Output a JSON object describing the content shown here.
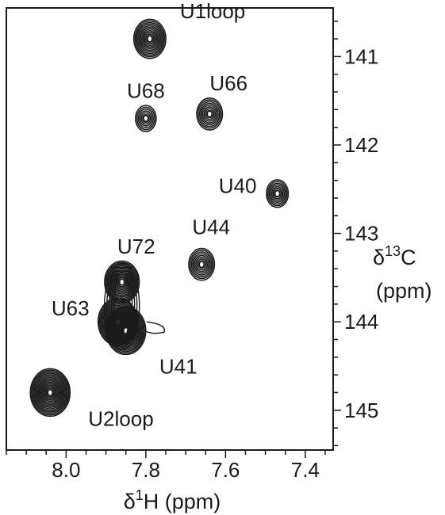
{
  "chart_data": {
    "type": "scatter",
    "subtype": "2D NMR contour spectrum (HSQC)",
    "x_axis": {
      "label_symbol": "δ",
      "label_superscript": "1",
      "label_rest": "H (ppm)",
      "range": [
        8.15,
        7.33
      ],
      "reversed": true,
      "ticks": [
        8.0,
        7.8,
        7.6,
        7.4
      ],
      "tick_labels": [
        "8.0",
        "7.8",
        "7.6",
        "7.4"
      ]
    },
    "y_axis": {
      "label_symbol": "δ",
      "label_superscript": "13",
      "label_rest": "C",
      "label_unit": "(ppm)",
      "range": [
        140.45,
        145.45
      ],
      "reversed": true,
      "side": "right",
      "ticks": [
        141,
        142,
        143,
        144,
        145
      ],
      "tick_labels": [
        "141",
        "142",
        "143",
        "144",
        "145"
      ]
    },
    "grid": false,
    "legend": "none",
    "contour_color": "#1a1a1a",
    "peaks": [
      {
        "label": "U1loop",
        "x": 7.79,
        "y": 140.8,
        "intensity": 0.7
      },
      {
        "label": "U68",
        "x": 7.8,
        "y": 141.7,
        "intensity": 0.25
      },
      {
        "label": "U66",
        "x": 7.64,
        "y": 141.65,
        "intensity": 0.45
      },
      {
        "label": "U40",
        "x": 7.47,
        "y": 142.55,
        "intensity": 0.3
      },
      {
        "label": "U44",
        "x": 7.66,
        "y": 143.35,
        "intensity": 0.45
      },
      {
        "label": "U72",
        "x": 7.86,
        "y": 143.55,
        "intensity": 0.8
      },
      {
        "label": "U63",
        "x": 7.87,
        "y": 144.0,
        "intensity": 1.0
      },
      {
        "label": "U41",
        "x": 7.85,
        "y": 144.1,
        "intensity": 1.0
      },
      {
        "label": "U2loop",
        "x": 8.04,
        "y": 144.8,
        "intensity": 1.0
      }
    ]
  }
}
